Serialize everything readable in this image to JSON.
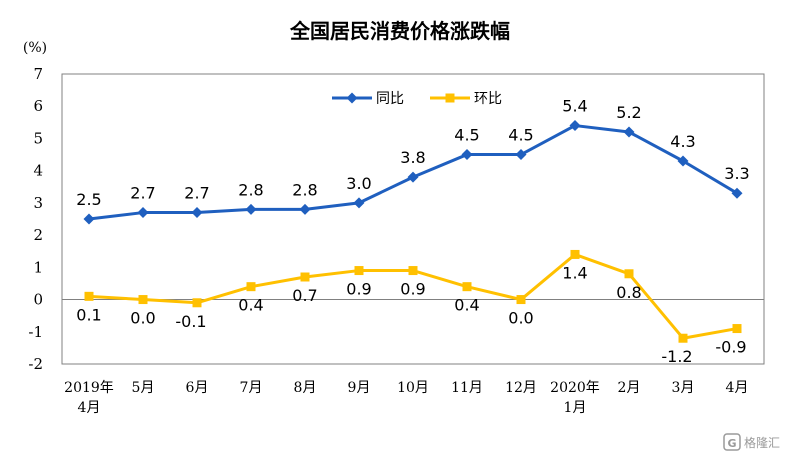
{
  "chart_data": {
    "type": "line",
    "title": "全国居民消费价格涨跌幅",
    "unit_label": "(%)",
    "categories": [
      "2019年\n4月",
      "5月",
      "6月",
      "7月",
      "8月",
      "9月",
      "10月",
      "11月",
      "12月",
      "2020年\n1月",
      "2月",
      "3月",
      "4月"
    ],
    "series": [
      {
        "name": "同比",
        "color": "#1f5fbf",
        "marker": "diamond",
        "values": [
          2.5,
          2.7,
          2.7,
          2.8,
          2.8,
          3.0,
          3.8,
          4.5,
          4.5,
          5.4,
          5.2,
          4.3,
          3.3
        ],
        "labels": [
          "2.5",
          "2.7",
          "2.7",
          "2.8",
          "2.8",
          "3.0",
          "3.8",
          "4.5",
          "4.5",
          "5.4",
          "5.2",
          "4.3",
          "3.3"
        ]
      },
      {
        "name": "环比",
        "color": "#ffc000",
        "marker": "square",
        "values": [
          0.1,
          0.0,
          -0.1,
          0.4,
          0.7,
          0.9,
          0.9,
          0.4,
          0.0,
          1.4,
          0.8,
          -1.2,
          -0.9
        ],
        "labels": [
          "0.1",
          "0.0",
          "-0.1",
          "0.4",
          "0.7",
          "0.9",
          "0.9",
          "0.4",
          "0.0",
          "1.4",
          "0.8",
          "-1.2",
          "-0.9"
        ]
      }
    ],
    "ylim": [
      -2,
      7
    ],
    "yticks": [
      -2,
      -1,
      0,
      1,
      2,
      3,
      4,
      5,
      6,
      7
    ],
    "grid": false,
    "legend": "top-center"
  },
  "watermark": {
    "text": "格隆汇",
    "icon": "g-logo-icon"
  }
}
